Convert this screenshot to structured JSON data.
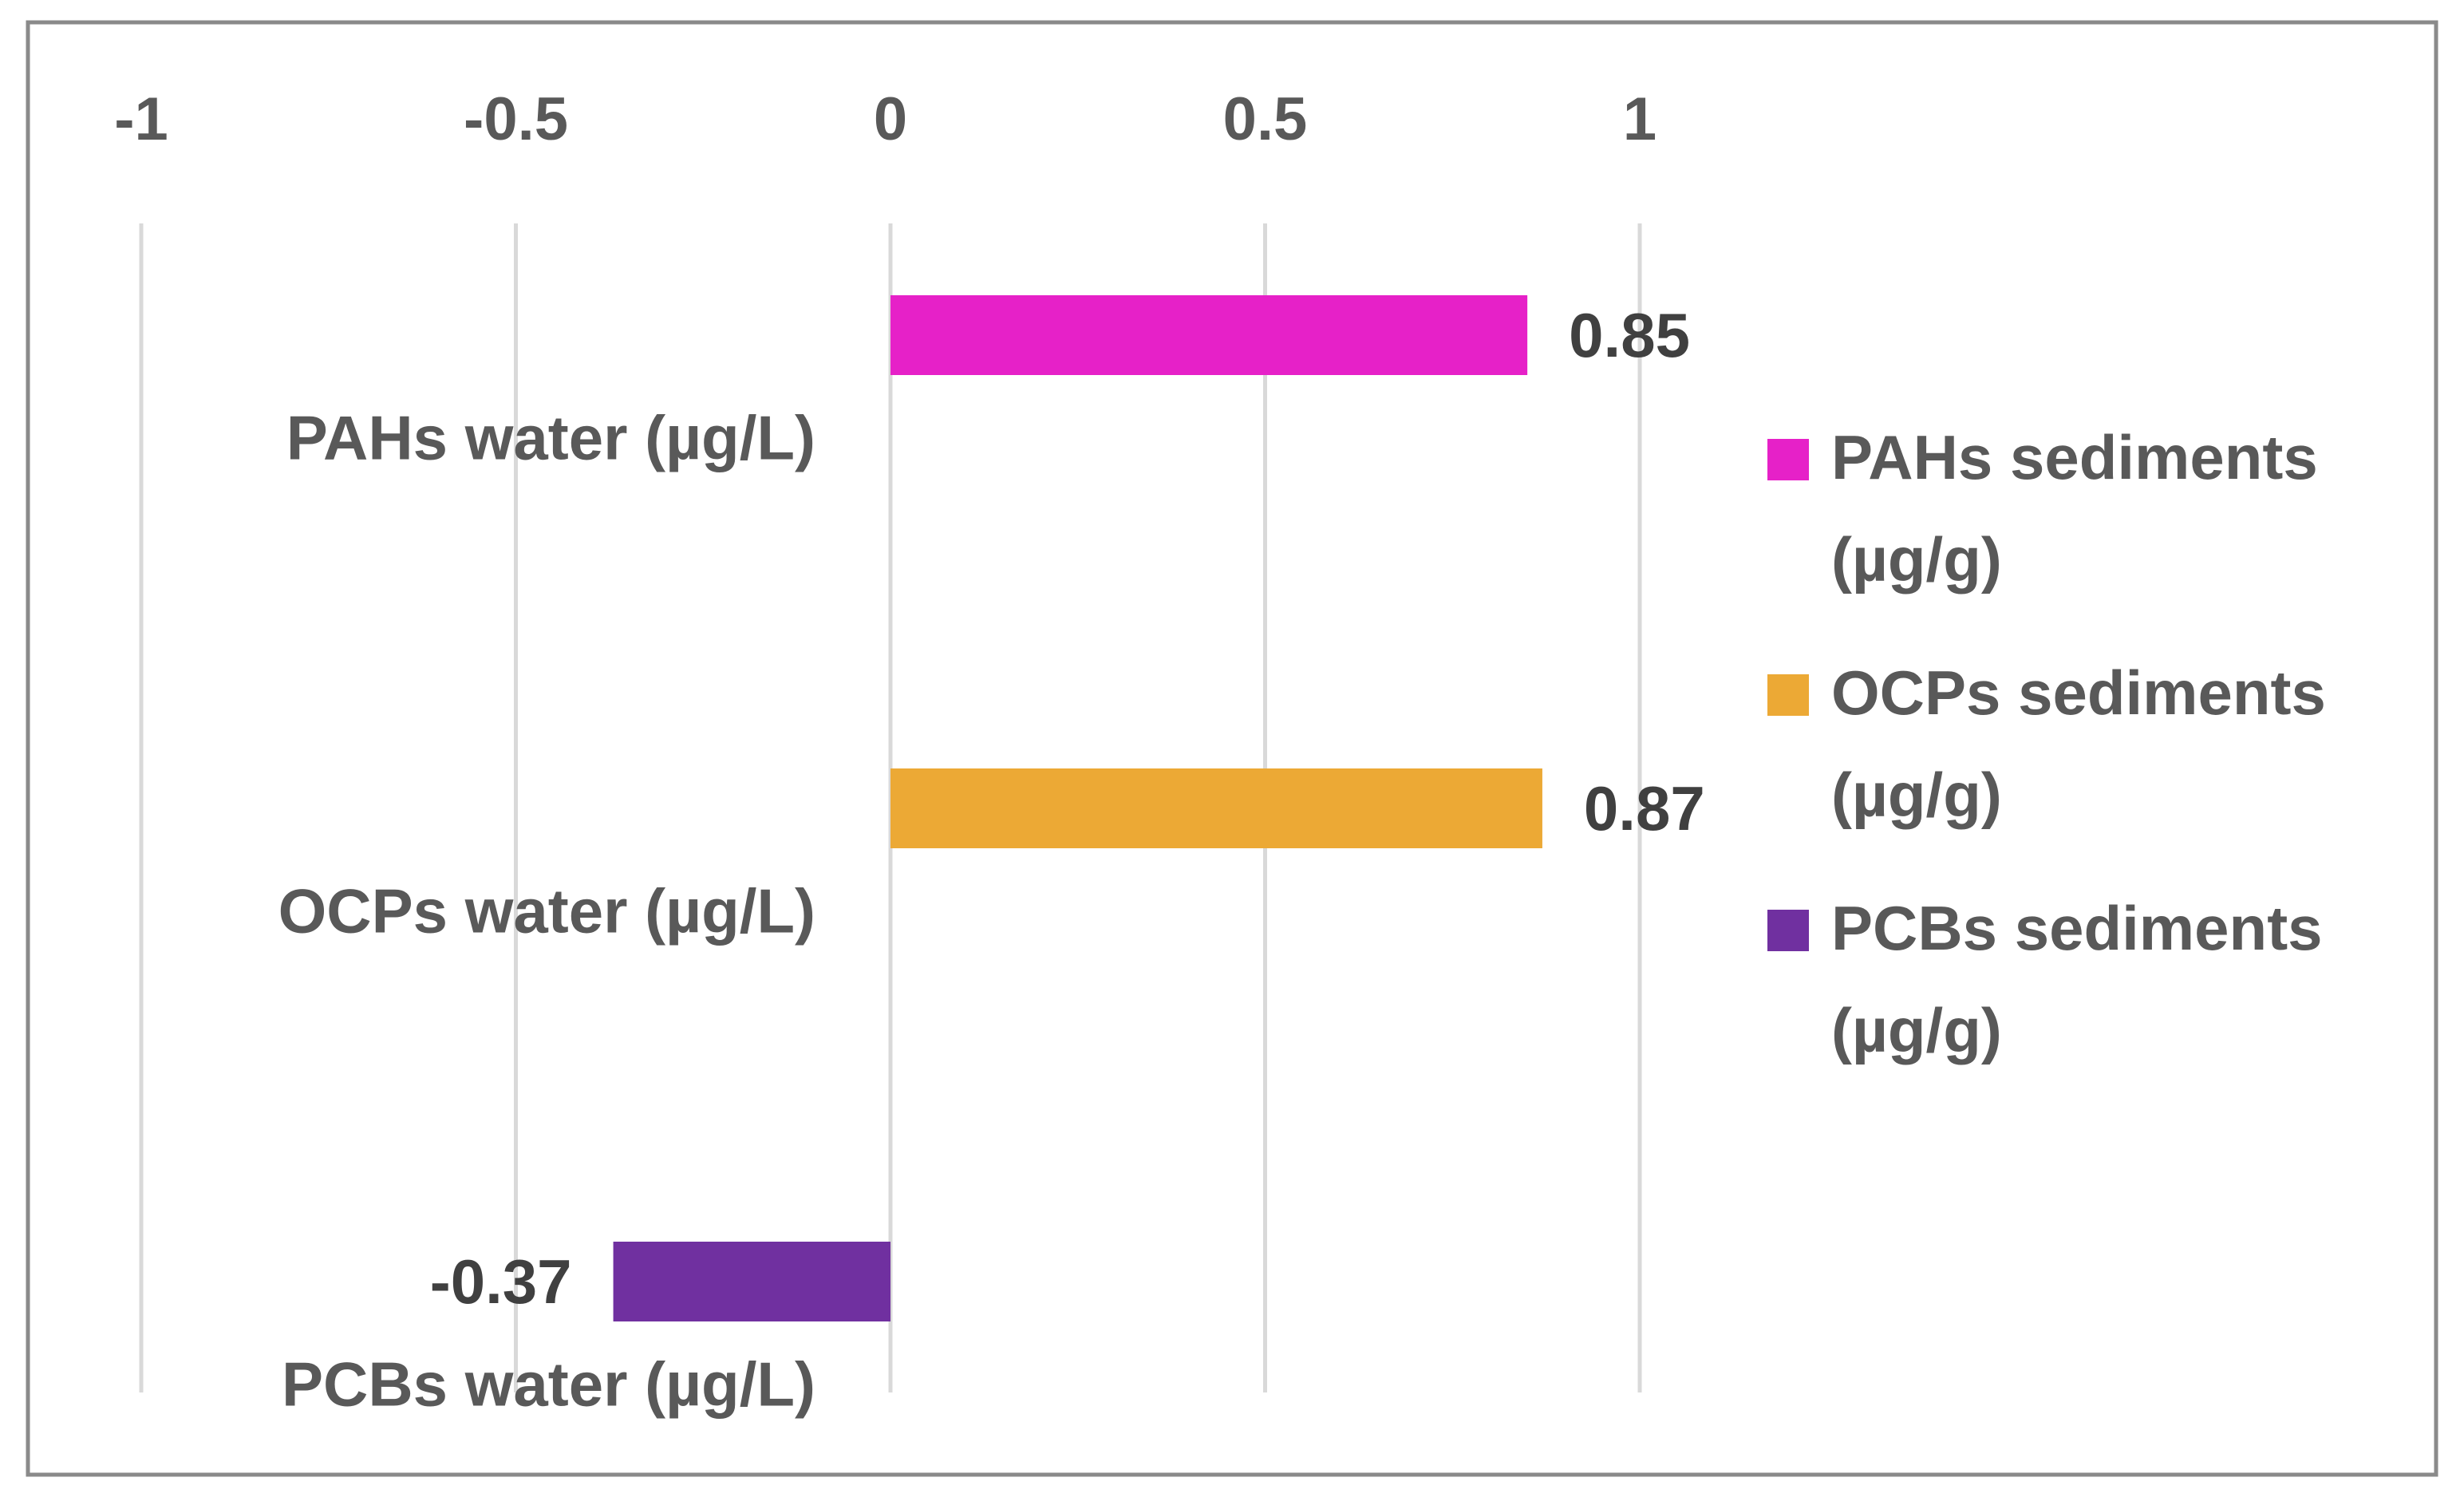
{
  "chart_data": {
    "type": "bar",
    "orientation": "horizontal",
    "title": "",
    "xlabel": "",
    "ylabel": "",
    "xlim": [
      -1,
      1
    ],
    "x_ticks": [
      {
        "value": -1,
        "label": "-1"
      },
      {
        "value": -0.5,
        "label": "-0.5"
      },
      {
        "value": 0,
        "label": "0"
      },
      {
        "value": 0.5,
        "label": "0.5"
      },
      {
        "value": 1,
        "label": "1"
      }
    ],
    "x_axis_position": "top",
    "grid": true,
    "categories": [
      "PAHs water (µg/L)",
      "OCPs water (µg/L)",
      "PCBs water (µg/L)"
    ],
    "series": [
      {
        "name": "PAHs sediments (µg/g)",
        "legend_lines": [
          "PAHs sediments",
          "(µg/g)"
        ],
        "color": "#E621C8",
        "category_index": 0,
        "value": 0.85,
        "label": "0.85"
      },
      {
        "name": "OCPs sediments (µg/g)",
        "legend_lines": [
          "OCPs sediments",
          "(µg/g)"
        ],
        "color": "#ECA935",
        "category_index": 1,
        "value": 0.87,
        "label": "0.87"
      },
      {
        "name": "PCBs sediments (µg/g)",
        "legend_lines": [
          "PCBs sediments",
          "(µg/g)"
        ],
        "color": "#7030A0",
        "category_index": 2,
        "value": -0.37,
        "label": "-0.37"
      }
    ],
    "legend_position": "right"
  }
}
